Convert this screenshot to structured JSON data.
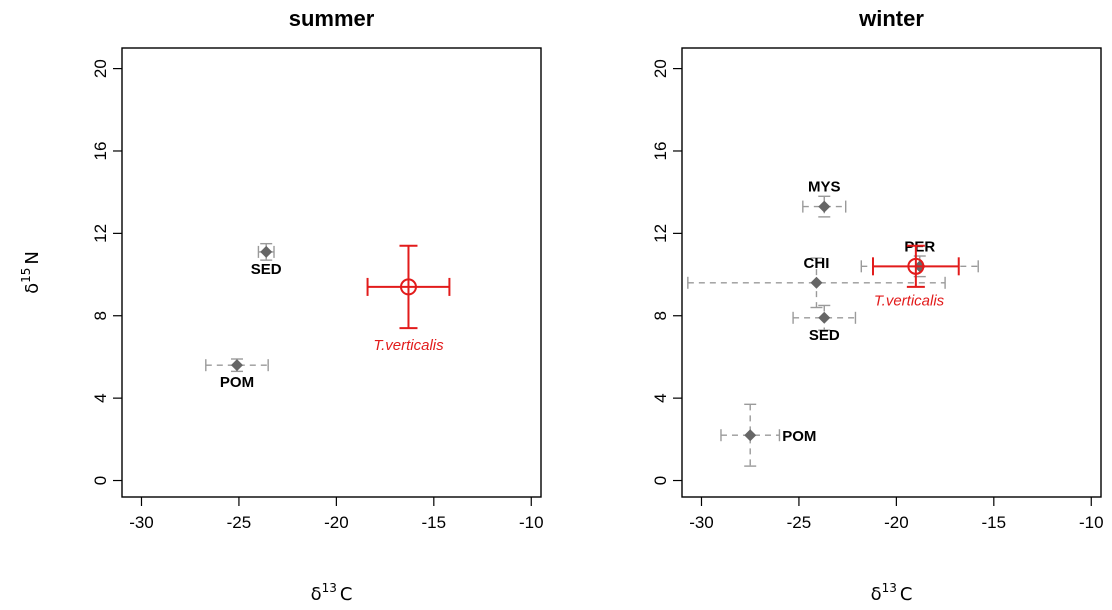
{
  "chart_data": [
    {
      "type": "scatter",
      "title": "summer",
      "xlabel": "δ",
      "xlabel_sup": "13",
      "xlabel_suffix": "C",
      "ylabel": "δ",
      "ylabel_sup": "15",
      "ylabel_suffix": "N",
      "xlim": [
        -31,
        -9.5
      ],
      "ylim": [
        -0.8,
        21
      ],
      "xticks": [
        -30,
        -25,
        -20,
        -15,
        -10
      ],
      "yticks": [
        0,
        4,
        8,
        12,
        16,
        20
      ],
      "points": [
        {
          "label": "SED",
          "x": -23.6,
          "y": 11.1,
          "xerr": 0.4,
          "yerr": 0.4,
          "kind": "source",
          "label_pos": "below"
        },
        {
          "label": "POM",
          "x": -25.1,
          "y": 5.6,
          "xerr": 1.6,
          "yerr": 0.3,
          "kind": "source",
          "label_pos": "below"
        },
        {
          "label": "T.verticalis",
          "x": -16.3,
          "y": 9.4,
          "xerr": 2.1,
          "yerr": 2.0,
          "kind": "consumer",
          "label_pos": "below"
        }
      ]
    },
    {
      "type": "scatter",
      "title": "winter",
      "xlabel": "δ",
      "xlabel_sup": "13",
      "xlabel_suffix": "C",
      "ylabel": "",
      "xlim": [
        -31,
        -9.5
      ],
      "ylim": [
        -0.8,
        21
      ],
      "xticks": [
        -30,
        -25,
        -20,
        -15,
        -10
      ],
      "yticks": [
        0,
        4,
        8,
        12,
        16,
        20
      ],
      "points": [
        {
          "label": "MYS",
          "x": -23.7,
          "y": 13.3,
          "xerr": 1.1,
          "yerr": 0.5,
          "kind": "source",
          "label_pos": "above"
        },
        {
          "label": "CHI",
          "x": -24.1,
          "y": 9.6,
          "xerr": 6.6,
          "yerr": 1.2,
          "kind": "source",
          "label_pos": "above"
        },
        {
          "label": "SED",
          "x": -23.7,
          "y": 7.9,
          "xerr": 1.6,
          "yerr": 0.6,
          "kind": "source",
          "label_pos": "below"
        },
        {
          "label": "POM",
          "x": -27.5,
          "y": 2.2,
          "xerr": 1.5,
          "yerr": 1.5,
          "kind": "source",
          "label_pos": "right"
        },
        {
          "label": "PER",
          "x": -18.8,
          "y": 10.4,
          "xerr": 3.0,
          "yerr": 0.5,
          "kind": "source",
          "label_pos": "above"
        },
        {
          "label": "T.verticalis",
          "x": -19.0,
          "y": 10.4,
          "xerr": 2.2,
          "yerr": 1.0,
          "kind": "consumer",
          "label_pos": "below-right"
        }
      ]
    }
  ],
  "colors": {
    "source_marker": "#666666",
    "source_errorbar": "#9a9a9a",
    "consumer": "#e21b1b",
    "axis": "#000000"
  }
}
